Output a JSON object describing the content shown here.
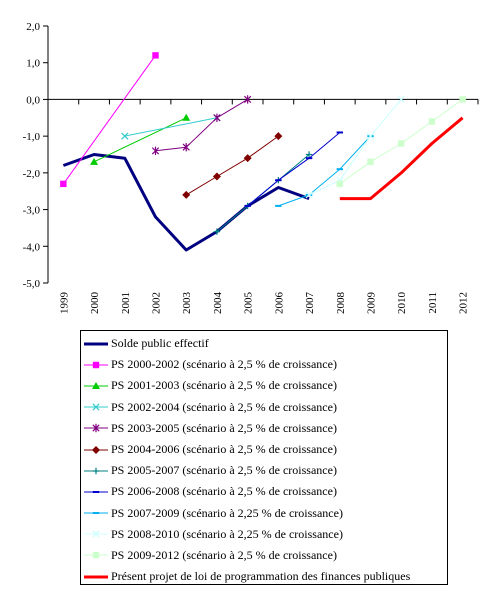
{
  "chart_data": {
    "type": "line",
    "title": "",
    "xlabel": "",
    "ylabel": "",
    "categories": [
      "1999",
      "2000",
      "2001",
      "2002",
      "2003",
      "2004",
      "2005",
      "2006",
      "2007",
      "2008",
      "2009",
      "2010",
      "2011",
      "2012"
    ],
    "ylim": [
      -5,
      2
    ],
    "yticks": [
      2,
      1,
      0,
      -1,
      -2,
      -3,
      -4,
      -5
    ],
    "ytick_labels": [
      "2,0",
      "1,0",
      "0,0",
      "-1,0",
      "-2,0",
      "-3,0",
      "-4,0",
      "-5,0"
    ],
    "legend_position": "bottom",
    "grid": false,
    "series": [
      {
        "name": "Solde public effectif",
        "color": "#000080",
        "width": 3,
        "marker": "none",
        "points": [
          [
            1999,
            -1.8
          ],
          [
            2000,
            -1.5
          ],
          [
            2001,
            -1.6
          ],
          [
            2002,
            -3.2
          ],
          [
            2003,
            -4.1
          ],
          [
            2004,
            -3.6
          ],
          [
            2005,
            -2.9
          ],
          [
            2006,
            -2.4
          ],
          [
            2007,
            -2.7
          ]
        ]
      },
      {
        "name": "PS 2000-2002 (scénario à 2,5 % de croissance)",
        "color": "#ff00ff",
        "width": 1,
        "marker": "square",
        "points": [
          [
            1999,
            -2.3
          ],
          [
            2002,
            1.2
          ]
        ]
      },
      {
        "name": "PS 2001-2003 (scénario à 2,5 % de croissance)",
        "color": "#00cc00",
        "width": 1,
        "marker": "triangle",
        "points": [
          [
            2000,
            -1.7
          ],
          [
            2003,
            -0.5
          ]
        ]
      },
      {
        "name": "PS 2002-2004 (scénario à 2,5 % de croissance)",
        "color": "#33cccc",
        "width": 1,
        "marker": "x",
        "points": [
          [
            2001,
            -1.0
          ],
          [
            2004,
            -0.5
          ]
        ]
      },
      {
        "name": "PS 2003-2005 (scénario à 2,5 % de croissance)",
        "color": "#800080",
        "width": 1,
        "marker": "star",
        "points": [
          [
            2002,
            -1.4
          ],
          [
            2003,
            -1.3
          ],
          [
            2004,
            -0.5
          ],
          [
            2005,
            0.0
          ]
        ]
      },
      {
        "name": "PS 2004-2006 (scénario à 2,5 % de croissance)",
        "color": "#800000",
        "width": 1,
        "marker": "diamond",
        "points": [
          [
            2003,
            -2.6
          ],
          [
            2004,
            -2.1
          ],
          [
            2005,
            -1.6
          ],
          [
            2006,
            -1.0
          ]
        ]
      },
      {
        "name": "PS 2005-2007 (scénario à 2,5 % de croissance)",
        "color": "#008080",
        "width": 1,
        "marker": "plus",
        "points": [
          [
            2004,
            -3.6
          ],
          [
            2005,
            -2.9
          ],
          [
            2006,
            -2.2
          ],
          [
            2007,
            -1.5
          ]
        ]
      },
      {
        "name": "PS 2006-2008 (scénario à 2,5 % de croissance)",
        "color": "#0000cc",
        "width": 1,
        "marker": "dash",
        "points": [
          [
            2005,
            -2.9
          ],
          [
            2006,
            -2.2
          ],
          [
            2007,
            -1.6
          ],
          [
            2008,
            -0.9
          ]
        ]
      },
      {
        "name": "PS 2007-2009 (scénario à 2,25 % de croissance)",
        "color": "#00b0f0",
        "width": 1,
        "marker": "dash",
        "points": [
          [
            2006,
            -2.9
          ],
          [
            2007,
            -2.6
          ],
          [
            2008,
            -1.9
          ],
          [
            2009,
            -1.0
          ]
        ]
      },
      {
        "name": "PS 2008-2010 (scénario à 2,25 % de croissance)",
        "color": "#ccffff",
        "width": 1,
        "marker": "x",
        "points": [
          [
            2007,
            -2.6
          ],
          [
            2008,
            -2.2
          ],
          [
            2009,
            -1.0
          ],
          [
            2010,
            0.0
          ]
        ]
      },
      {
        "name": "PS 2009-2012 (scénario à 2,5 % de croissance)",
        "color": "#ccffcc",
        "width": 1,
        "marker": "square",
        "points": [
          [
            2008,
            -2.3
          ],
          [
            2009,
            -1.7
          ],
          [
            2010,
            -1.2
          ],
          [
            2011,
            -0.6
          ],
          [
            2012,
            0.0
          ]
        ]
      },
      {
        "name": "Présent projet de loi de programmation des finances publiques",
        "color": "#ff0000",
        "width": 3,
        "marker": "none",
        "points": [
          [
            2008,
            -2.7
          ],
          [
            2009,
            -2.7
          ],
          [
            2010,
            -2.0
          ],
          [
            2011,
            -1.2
          ],
          [
            2012,
            -0.5
          ]
        ]
      }
    ]
  }
}
